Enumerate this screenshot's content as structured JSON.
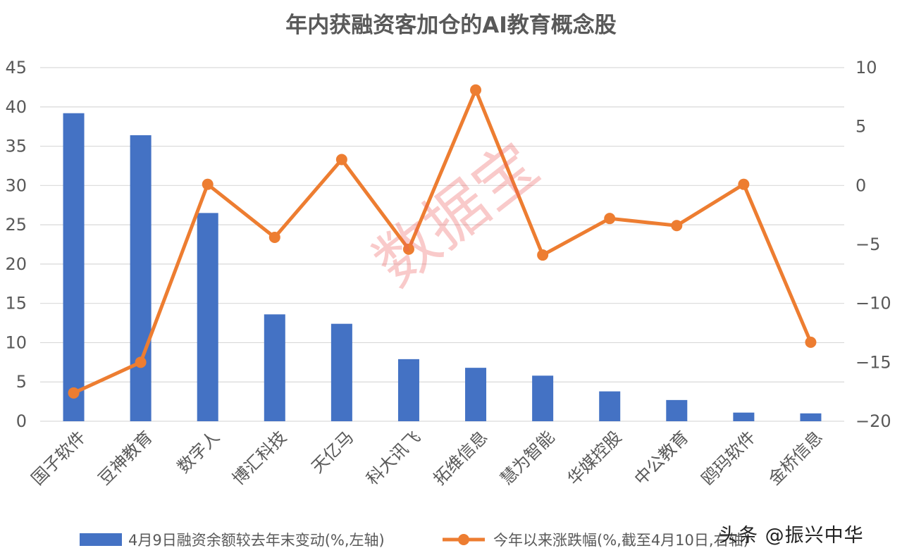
{
  "colors": {
    "bar": "#4472C4",
    "line": "#ED7D31",
    "grid": "#D9D9D9",
    "text": "#595959"
  },
  "chart_data": {
    "type": "bar",
    "title": "年内获融资客加仓的AI教育概念股",
    "categories": [
      "国子软件",
      "豆神教育",
      "数字人",
      "博汇科技",
      "天亿马",
      "科大讯飞",
      "拓维信息",
      "慧为智能",
      "华媒控股",
      "中公教育",
      "鸥玛软件",
      "金桥信息"
    ],
    "series": [
      {
        "name": "4月9日融资余额较去年末变动(%,左轴)",
        "type": "bar",
        "axis": "left",
        "values": [
          39.2,
          36.4,
          26.5,
          13.6,
          12.4,
          7.9,
          6.8,
          5.8,
          3.8,
          2.7,
          1.1,
          1.0
        ]
      },
      {
        "name": "今年以来涨跌幅(%,截至4月10日,右轴)",
        "type": "line",
        "axis": "right",
        "values": [
          -17.6,
          -15.0,
          0.1,
          -4.4,
          2.2,
          -5.4,
          8.1,
          -5.9,
          -2.8,
          -3.4,
          0.1,
          -13.3
        ]
      }
    ],
    "left_axis": {
      "min": 0,
      "max": 45,
      "ticks": [
        "0",
        "5",
        "10",
        "15",
        "20",
        "25",
        "30",
        "35",
        "40",
        "45"
      ]
    },
    "right_axis": {
      "min": -20,
      "max": 10,
      "ticks": [
        "-20",
        "-15",
        "-10",
        "-5",
        "0",
        "5",
        "10"
      ]
    },
    "grid": true,
    "legend_position": "bottom"
  },
  "watermark": "数据宝",
  "credit": "头条 @振兴中华"
}
